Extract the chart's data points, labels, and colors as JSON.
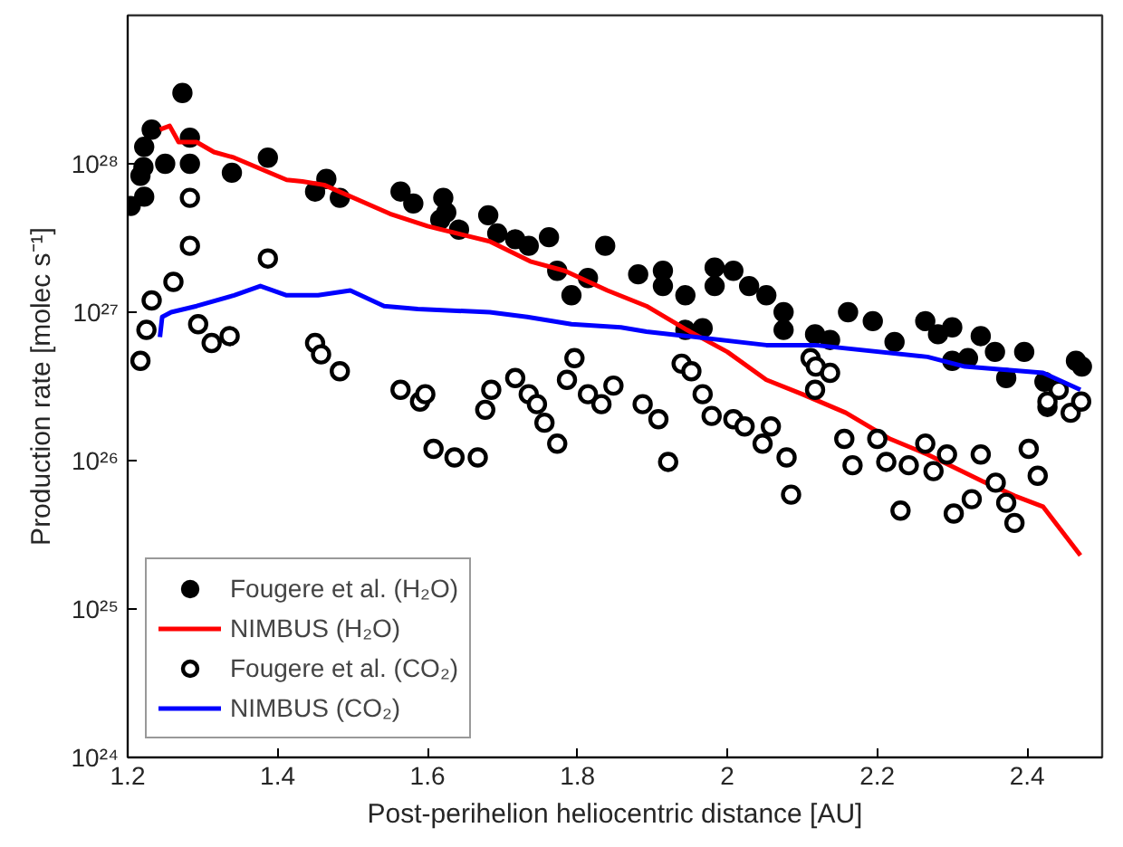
{
  "chart_data": {
    "type": "scatter",
    "xlabel": "Post-perihelion heliocentric distance [AU]",
    "ylabel": "Production rate [molec s⁻¹]",
    "log": "y",
    "grid": false,
    "legend": "bottom left",
    "xlim": [
      1.2,
      2.5
    ],
    "xticks": [
      1.2,
      1.4,
      1.6,
      1.8,
      2,
      2.2,
      2.4
    ],
    "ylim": [
      1e+24,
      1e+29
    ],
    "yticks": [
      {
        "value": 1e+24,
        "label": "10²⁴"
      },
      {
        "value": 1e+25,
        "label": "10²⁵"
      },
      {
        "value": 1e+26,
        "label": "10²⁶"
      },
      {
        "value": 1e+27,
        "label": "10²⁷"
      },
      {
        "value": 1e+28,
        "label": "10²⁸"
      }
    ],
    "series": [
      {
        "name": "Fougere et al. (H₂O)",
        "marker": "circle",
        "color": "#000000",
        "x": [
          1.204,
          1.217,
          1.221,
          1.222,
          1.222,
          1.232,
          1.25,
          1.273,
          1.283,
          1.283,
          1.339,
          1.387,
          1.45,
          1.465,
          1.483,
          1.564,
          1.581,
          1.621,
          1.625,
          1.617,
          1.642,
          1.681,
          1.693,
          1.717,
          1.735,
          1.762,
          1.773,
          1.792,
          1.814,
          1.837,
          1.881,
          1.914,
          1.914,
          1.944,
          1.944,
          1.967,
          1.983,
          1.983,
          2.008,
          2.029,
          2.052,
          2.075,
          2.075,
          2.117,
          2.137,
          2.161,
          2.194,
          2.223,
          2.264,
          2.281,
          2.3,
          2.3,
          2.321,
          2.338,
          2.357,
          2.372,
          2.396,
          2.423,
          2.427,
          2.465,
          2.473
        ],
        "values": [
          5.2e+27,
          8.3e+27,
          9.5e+27,
          1.3e+28,
          6e+27,
          1.7e+28,
          1e+28,
          3e+28,
          1.5e+28,
          1e+28,
          8.7e+27,
          1.1e+28,
          6.5e+27,
          7.9e+27,
          5.9e+27,
          6.5e+27,
          5.4e+27,
          5.9e+27,
          4.7e+27,
          4.2e+27,
          3.6e+27,
          4.5e+27,
          3.4e+27,
          3.1e+27,
          2.8e+27,
          3.2e+27,
          1.9e+27,
          1.3e+27,
          1.7e+27,
          2.8e+27,
          1.8e+27,
          1.9e+27,
          1.5e+27,
          1.3e+27,
          7.6e+26,
          7.8e+26,
          2e+27,
          1.5e+27,
          1.9e+27,
          1.5e+27,
          1.3e+27,
          1e+27,
          7.6e+26,
          7.1e+26,
          6.5e+26,
          1e+27,
          8.7e+26,
          6.3e+26,
          8.7e+26,
          7.1e+26,
          7.9e+26,
          4.7e+26,
          4.9e+26,
          6.9e+26,
          5.4e+26,
          3.6e+26,
          5.4e+26,
          3.4e+26,
          2.3e+26,
          4.7e+26,
          4.3e+26
        ]
      },
      {
        "name": "NIMBUS (H₂O)",
        "type": "line",
        "marker": "none",
        "line_style": "solid",
        "color": "#ff0000",
        "x": [
          1.243,
          1.256,
          1.268,
          1.292,
          1.315,
          1.342,
          1.412,
          1.433,
          1.462,
          1.55,
          1.6,
          1.683,
          1.737,
          1.783,
          1.84,
          1.892,
          1.946,
          2.0,
          2.052,
          2.1,
          2.158,
          2.217,
          2.267,
          2.342,
          2.383,
          2.421,
          2.471
        ],
        "values": [
          1.7e+28,
          1.8e+28,
          1.4e+28,
          1.4e+28,
          1.2e+28,
          1.1e+28,
          7.8e+27,
          7.6e+27,
          7.2e+27,
          4.6e+27,
          3.8e+27,
          3e+27,
          2.2e+27,
          1.9e+27,
          1.4e+27,
          1.1e+27,
          7.6e+26,
          5.4e+26,
          3.5e+26,
          2.8e+26,
          2.1e+26,
          1.4e+26,
          1.1e+26,
          7.2e+25,
          5.8e+25,
          4.9e+25,
          2.3e+25
        ]
      },
      {
        "name": "Fougere et al. (CO₂)",
        "marker": "circle_open",
        "color": "#000000",
        "x": [
          1.217,
          1.225,
          1.232,
          1.261,
          1.283,
          1.283,
          1.294,
          1.312,
          1.336,
          1.387,
          1.45,
          1.458,
          1.483,
          1.564,
          1.59,
          1.597,
          1.608,
          1.636,
          1.667,
          1.677,
          1.685,
          1.717,
          1.735,
          1.746,
          1.756,
          1.773,
          1.786,
          1.796,
          1.814,
          1.832,
          1.848,
          1.887,
          1.908,
          1.921,
          1.939,
          1.952,
          1.967,
          1.979,
          2.008,
          2.023,
          2.047,
          2.058,
          2.079,
          2.085,
          2.111,
          2.117,
          2.118,
          2.137,
          2.156,
          2.167,
          2.2,
          2.212,
          2.231,
          2.242,
          2.264,
          2.275,
          2.293,
          2.302,
          2.326,
          2.338,
          2.358,
          2.372,
          2.383,
          2.402,
          2.414,
          2.427,
          2.442,
          2.458,
          2.472
        ],
        "values": [
          4.7e+26,
          7.6e+26,
          1.2e+27,
          1.6e+27,
          5.9e+27,
          2.8e+27,
          8.3e+26,
          6.2e+26,
          6.9e+26,
          2.3e+27,
          6.2e+26,
          5.2e+26,
          4e+26,
          3e+26,
          2.5e+26,
          2.8e+26,
          1.2e+26,
          1.05e+26,
          1.05e+26,
          2.2e+26,
          3e+26,
          3.6e+26,
          2.8e+26,
          2.4e+26,
          1.8e+26,
          1.3e+26,
          3.5e+26,
          4.9e+26,
          2.8e+26,
          2.4e+26,
          3.2e+26,
          2.4e+26,
          1.9e+26,
          9.8e+25,
          4.5e+26,
          4e+26,
          2.8e+26,
          2e+26,
          1.9e+26,
          1.7e+26,
          1.3e+26,
          1.7e+26,
          1.05e+26,
          5.9e+25,
          4.9e+26,
          3e+26,
          4.3e+26,
          3.9e+26,
          1.4e+26,
          9.3e+25,
          1.4e+26,
          9.8e+25,
          4.6e+25,
          9.3e+25,
          1.3e+26,
          8.5e+25,
          1.1e+26,
          4.4e+25,
          5.5e+25,
          1.1e+26,
          7.1e+25,
          5.2e+25,
          3.8e+25,
          1.2e+26,
          7.9e+25,
          2.5e+26,
          3e+26,
          2.1e+26,
          2.5e+26
        ]
      },
      {
        "name": "NIMBUS (CO₂)",
        "type": "line",
        "marker": "none",
        "line_style": "solid",
        "color": "#0000ff",
        "x": [
          1.243,
          1.246,
          1.258,
          1.292,
          1.342,
          1.377,
          1.412,
          1.454,
          1.497,
          1.542,
          1.587,
          1.683,
          1.733,
          1.792,
          1.858,
          1.892,
          1.946,
          2.052,
          2.117,
          2.267,
          2.317,
          2.421,
          2.471
        ],
        "values": [
          6.8e+26,
          9.3e+26,
          1e+27,
          1.1e+27,
          1.3e+27,
          1.5e+27,
          1.3e+27,
          1.3e+27,
          1.4e+27,
          1.1e+27,
          1.05e+27,
          1e+27,
          9.3e+26,
          8.3e+26,
          7.9e+26,
          7.4e+26,
          6.9e+26,
          6e+26,
          6e+26,
          5e+26,
          4.3e+26,
          3.9e+26,
          3e+26
        ]
      }
    ]
  }
}
